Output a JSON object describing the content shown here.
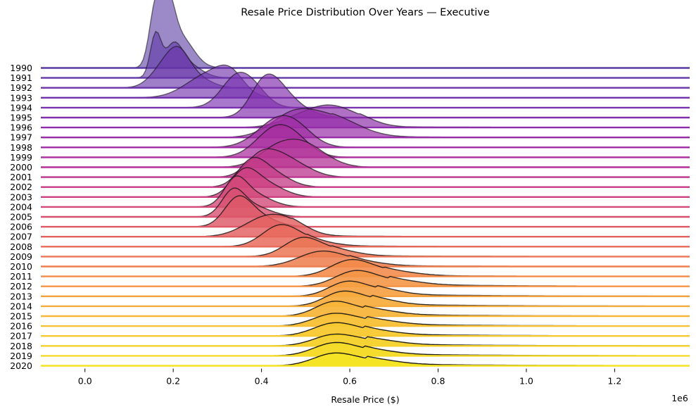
{
  "chart_data": {
    "type": "ridgeline",
    "title": "Resale Price Distribution Over Years — Executive",
    "xlabel": "Resale Price ($)",
    "x_scale_note": "1e6",
    "xlim": [
      -0.1,
      1.37
    ],
    "xticks": [
      0.0,
      0.2,
      0.4,
      0.6,
      0.8,
      1.0,
      1.2
    ],
    "xtick_labels": [
      "0.0",
      "0.2",
      "0.4",
      "0.6",
      "0.8",
      "1.0",
      "1.2"
    ],
    "colormap": "plasma",
    "colormap_range": [
      "#5b3da5",
      "#f7e423"
    ],
    "series": [
      {
        "name": "1990",
        "peaks": [
          [
            0.16,
            0.55,
            0.014
          ],
          [
            0.188,
            0.48,
            0.015
          ],
          [
            0.215,
            0.3,
            0.03
          ]
        ],
        "tail": 0.0
      },
      {
        "name": "1991",
        "peaks": [
          [
            0.16,
            0.4,
            0.012
          ],
          [
            0.2,
            0.28,
            0.02
          ],
          [
            0.235,
            0.12,
            0.03
          ]
        ],
        "tail": 0.0
      },
      {
        "name": "1992",
        "peaks": [
          [
            0.18,
            0.2,
            0.03
          ],
          [
            0.215,
            0.26,
            0.025
          ],
          [
            0.26,
            0.08,
            0.03
          ]
        ],
        "tail": 0.0
      },
      {
        "name": "1993",
        "peaks": [
          [
            0.28,
            0.22,
            0.05
          ],
          [
            0.33,
            0.16,
            0.03
          ]
        ],
        "tail": 0.0
      },
      {
        "name": "1994",
        "peaks": [
          [
            0.345,
            0.3,
            0.035
          ],
          [
            0.39,
            0.1,
            0.03
          ]
        ],
        "tail": 0.0
      },
      {
        "name": "1995",
        "peaks": [
          [
            0.4,
            0.2,
            0.03
          ],
          [
            0.43,
            0.24,
            0.035
          ],
          [
            0.48,
            0.08,
            0.04
          ]
        ],
        "tail": 0.0
      },
      {
        "name": "1996",
        "peaks": [
          [
            0.5,
            0.12,
            0.05
          ],
          [
            0.56,
            0.13,
            0.04
          ],
          [
            0.62,
            0.08,
            0.04
          ]
        ],
        "tail": 0.01
      },
      {
        "name": "1997",
        "peaks": [
          [
            0.47,
            0.2,
            0.05
          ],
          [
            0.56,
            0.18,
            0.06
          ]
        ],
        "tail": 0.01
      },
      {
        "name": "1998",
        "peaks": [
          [
            0.43,
            0.22,
            0.045
          ],
          [
            0.48,
            0.14,
            0.04
          ]
        ],
        "tail": 0.0
      },
      {
        "name": "1999",
        "peaks": [
          [
            0.42,
            0.2,
            0.04
          ],
          [
            0.47,
            0.18,
            0.04
          ]
        ],
        "tail": 0.0
      },
      {
        "name": "2000",
        "peaks": [
          [
            0.43,
            0.16,
            0.04
          ],
          [
            0.49,
            0.18,
            0.04
          ],
          [
            0.54,
            0.06,
            0.04
          ]
        ],
        "tail": 0.0
      },
      {
        "name": "2001",
        "peaks": [
          [
            0.39,
            0.14,
            0.03
          ],
          [
            0.43,
            0.16,
            0.035
          ],
          [
            0.48,
            0.1,
            0.04
          ]
        ],
        "tail": 0.0
      },
      {
        "name": "2002",
        "peaks": [
          [
            0.375,
            0.2,
            0.03
          ],
          [
            0.42,
            0.14,
            0.04
          ]
        ],
        "tail": 0.0
      },
      {
        "name": "2003",
        "peaks": [
          [
            0.36,
            0.22,
            0.03
          ],
          [
            0.41,
            0.12,
            0.04
          ]
        ],
        "tail": 0.0
      },
      {
        "name": "2004",
        "peaks": [
          [
            0.34,
            0.22,
            0.025
          ],
          [
            0.38,
            0.12,
            0.04
          ]
        ],
        "tail": 0.0
      },
      {
        "name": "2005",
        "peaks": [
          [
            0.335,
            0.22,
            0.025
          ],
          [
            0.38,
            0.1,
            0.04
          ]
        ],
        "tail": 0.0
      },
      {
        "name": "2006",
        "peaks": [
          [
            0.345,
            0.24,
            0.03
          ],
          [
            0.39,
            0.1,
            0.04
          ]
        ],
        "tail": 0.0
      },
      {
        "name": "2007",
        "peaks": [
          [
            0.41,
            0.18,
            0.05
          ],
          [
            0.47,
            0.08,
            0.04
          ]
        ],
        "tail": 0.01
      },
      {
        "name": "2008",
        "peaks": [
          [
            0.44,
            0.18,
            0.04
          ],
          [
            0.5,
            0.06,
            0.05
          ]
        ],
        "tail": 0.01
      },
      {
        "name": "2009",
        "peaks": [
          [
            0.49,
            0.16,
            0.04
          ],
          [
            0.56,
            0.06,
            0.05
          ]
        ],
        "tail": 0.01
      },
      {
        "name": "2010",
        "peaks": [
          [
            0.53,
            0.12,
            0.05
          ],
          [
            0.6,
            0.05,
            0.06
          ]
        ],
        "tail": 0.01
      },
      {
        "name": "2011",
        "peaks": [
          [
            0.6,
            0.14,
            0.045
          ],
          [
            0.68,
            0.05,
            0.06
          ]
        ],
        "tail": 0.01
      },
      {
        "name": "2012",
        "peaks": [
          [
            0.61,
            0.13,
            0.045
          ],
          [
            0.69,
            0.05,
            0.06
          ]
        ],
        "tail": 0.02
      },
      {
        "name": "2013",
        "peaks": [
          [
            0.59,
            0.12,
            0.04
          ],
          [
            0.66,
            0.06,
            0.05
          ]
        ],
        "tail": 0.02
      },
      {
        "name": "2014",
        "peaks": [
          [
            0.58,
            0.12,
            0.04
          ],
          [
            0.65,
            0.06,
            0.05
          ]
        ],
        "tail": 0.02
      },
      {
        "name": "2015",
        "peaks": [
          [
            0.56,
            0.11,
            0.04
          ],
          [
            0.63,
            0.06,
            0.06
          ]
        ],
        "tail": 0.02
      },
      {
        "name": "2016",
        "peaks": [
          [
            0.56,
            0.1,
            0.045
          ],
          [
            0.64,
            0.05,
            0.06
          ]
        ],
        "tail": 0.02
      },
      {
        "name": "2017",
        "peaks": [
          [
            0.56,
            0.1,
            0.045
          ],
          [
            0.63,
            0.05,
            0.06
          ]
        ],
        "tail": 0.02
      },
      {
        "name": "2018",
        "peaks": [
          [
            0.56,
            0.09,
            0.045
          ],
          [
            0.64,
            0.05,
            0.06
          ]
        ],
        "tail": 0.02
      },
      {
        "name": "2019",
        "peaks": [
          [
            0.56,
            0.1,
            0.045
          ],
          [
            0.63,
            0.05,
            0.06
          ]
        ],
        "tail": 0.02
      },
      {
        "name": "2020",
        "peaks": [
          [
            0.56,
            0.1,
            0.045
          ],
          [
            0.64,
            0.05,
            0.06
          ]
        ],
        "tail": 0.02
      }
    ]
  }
}
